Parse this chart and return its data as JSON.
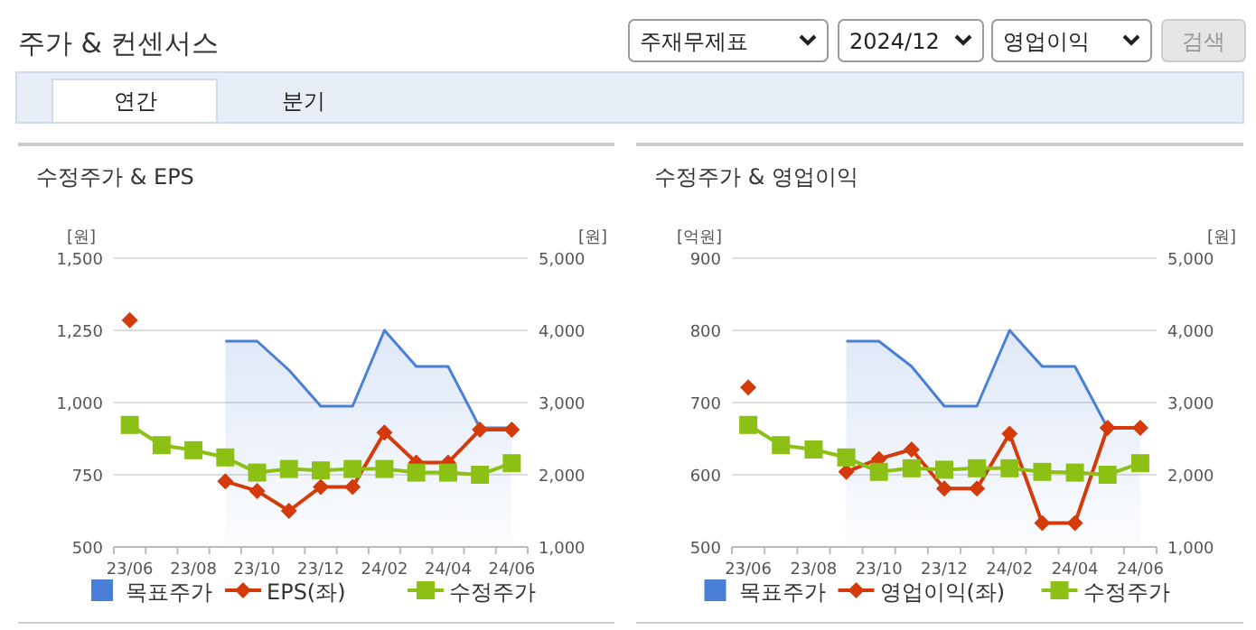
{
  "chart_data": [
    {
      "type": "other",
      "title": "주가 & 컨센서스",
      "annotations": [
        "주재무제표",
        "2024/12",
        "영업이익",
        "검색",
        "연간",
        "분기"
      ]
    },
    {
      "type": "line",
      "title": "수정주가 & EPS",
      "categories": [
        "23/06",
        null,
        "23/08",
        null,
        "23/10",
        null,
        "23/12",
        null,
        "24/02",
        null,
        "24/04",
        null,
        "24/06"
      ],
      "ylabel": "[원]",
      "y2label": "[원]",
      "ylim": [
        500,
        1500
      ],
      "yticks": [
        500,
        750,
        {
          "value": 1000,
          "label": "1,000"
        },
        {
          "value": 1250,
          "label": "1,250"
        },
        {
          "value": 1500,
          "label": "1,500"
        }
      ],
      "y2lim": [
        1000,
        5000
      ],
      "y2ticks": [
        {
          "value": 1000,
          "label": "1,000"
        },
        {
          "value": 2000,
          "label": "2,000"
        },
        {
          "value": 3000,
          "label": "3,000"
        },
        {
          "value": 4000,
          "label": "4,000"
        },
        {
          "value": 5000,
          "label": "5,000"
        }
      ],
      "grid": "y",
      "legend": "bottom",
      "series": [
        {
          "name": "목표주가",
          "type": "area",
          "axis": "y2",
          "color": "#4a7fd6",
          "marker": "none",
          "values": [
            null,
            null,
            null,
            3850,
            3850,
            3450,
            2950,
            2950,
            4000,
            3500,
            3500,
            2650,
            2650
          ]
        },
        {
          "name": "EPS(좌)",
          "type": "line",
          "axis": "y",
          "color": "#d43a0a",
          "marker": "diamond",
          "values": [
            1285,
            null,
            null,
            727,
            694,
            625,
            708,
            708,
            896,
            792,
            792,
            906,
            906
          ]
        },
        {
          "name": "수정주가",
          "type": "line",
          "axis": "y2",
          "color": "#8cc014",
          "marker": "square",
          "values": [
            2690,
            2410,
            2340,
            2240,
            2030,
            2080,
            2060,
            2080,
            2080,
            2030,
            2030,
            2000,
            2160
          ]
        }
      ]
    },
    {
      "type": "line",
      "title": "수정주가 & 영업이익",
      "categories": [
        "23/06",
        null,
        "23/08",
        null,
        "23/10",
        null,
        "23/12",
        null,
        "24/02",
        null,
        "24/04",
        null,
        "24/06"
      ],
      "ylabel": "[억원]",
      "y2label": "[원]",
      "ylim": [
        500,
        900
      ],
      "yticks": [
        500,
        600,
        700,
        800,
        900
      ],
      "y2lim": [
        1000,
        5000
      ],
      "y2ticks": [
        {
          "value": 1000,
          "label": "1,000"
        },
        {
          "value": 2000,
          "label": "2,000"
        },
        {
          "value": 3000,
          "label": "3,000"
        },
        {
          "value": 4000,
          "label": "4,000"
        },
        {
          "value": 5000,
          "label": "5,000"
        }
      ],
      "grid": "y",
      "legend": "bottom",
      "series": [
        {
          "name": "목표주가",
          "type": "area",
          "axis": "y2",
          "color": "#4a7fd6",
          "marker": "none",
          "values": [
            null,
            null,
            null,
            3850,
            3850,
            3500,
            2950,
            2950,
            4000,
            3500,
            3500,
            2650,
            2650
          ]
        },
        {
          "name": "영업이익(좌)",
          "type": "line",
          "axis": "y",
          "color": "#d43a0a",
          "marker": "diamond",
          "values": [
            721,
            null,
            null,
            604,
            622,
            635,
            581,
            581,
            657,
            533,
            533,
            665,
            665
          ]
        },
        {
          "name": "수정주가",
          "type": "line",
          "axis": "y2",
          "color": "#8cc014",
          "marker": "square",
          "values": [
            2690,
            2410,
            2350,
            2240,
            2040,
            2090,
            2070,
            2090,
            2090,
            2040,
            2030,
            2000,
            2160
          ]
        }
      ]
    }
  ]
}
